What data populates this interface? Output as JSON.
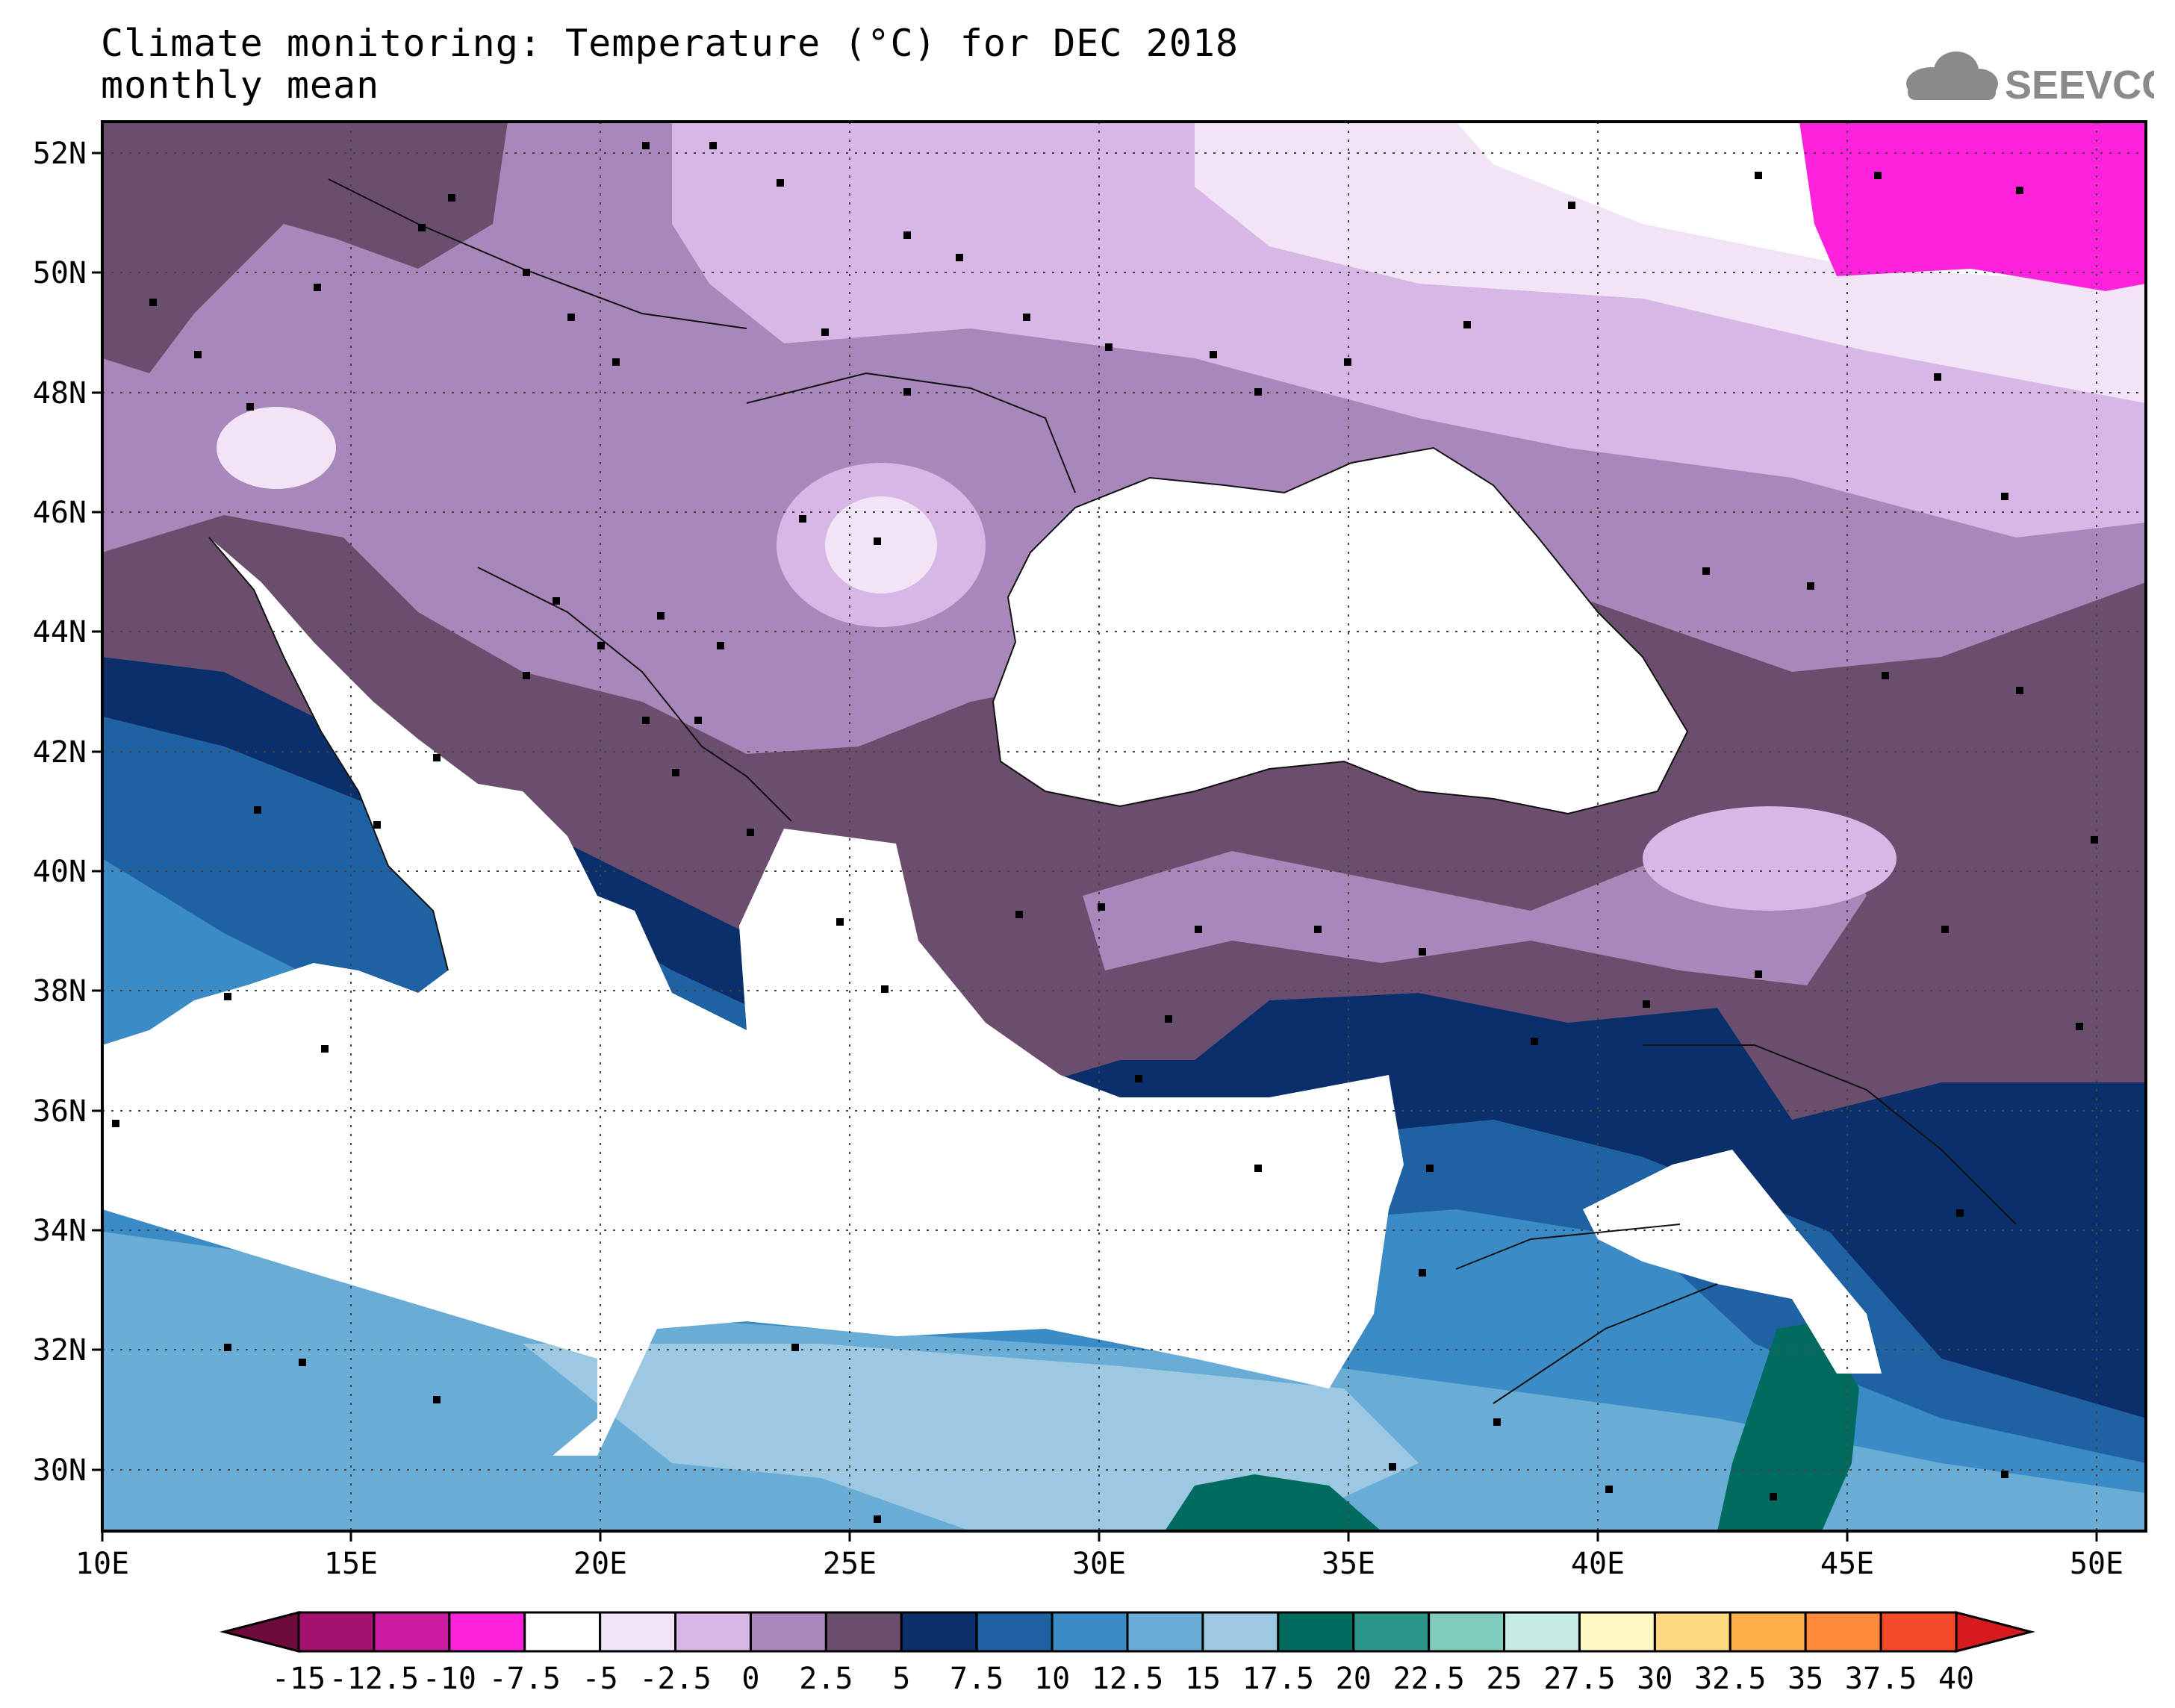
{
  "title": {
    "line1": "Climate monitoring: Temperature (°C) for DEC 2018",
    "line2": "monthly mean"
  },
  "logo": {
    "text": "SEEVCCC",
    "icon": "cloud-icon"
  },
  "map": {
    "lon_range": [
      10,
      51
    ],
    "lat_range": [
      29,
      52.5
    ],
    "grid": true,
    "lat_labels": [
      "52N",
      "50N",
      "48N",
      "46N",
      "44N",
      "42N",
      "40N",
      "38N",
      "36N",
      "34N",
      "32N",
      "30N"
    ],
    "lon_labels": [
      "10E",
      "15E",
      "20E",
      "25E",
      "30E",
      "35E",
      "40E",
      "45E",
      "50E"
    ]
  },
  "colorbar": {
    "labels": [
      "-15",
      "-12.5",
      "-10",
      "-7.5",
      "-5",
      "-2.5",
      "0",
      "2.5",
      "5",
      "7.5",
      "10",
      "12.5",
      "15",
      "17.5",
      "20",
      "22.5",
      "25",
      "27.5",
      "30",
      "32.5",
      "35",
      "37.5",
      "40"
    ],
    "colors": [
      "#6e0a3c",
      "#a3106e",
      "#cc1aa0",
      "#ff22dd",
      "#ffffff",
      "#f0e4f6",
      "#d8b6e6",
      "#a987ba",
      "#6b4e6e",
      "#0a2f6b",
      "#1f62a3",
      "#3b8cc6",
      "#69acd6",
      "#9cc8e2",
      "#006b5e",
      "#2d968a",
      "#7fccbf",
      "#c5ebe4",
      "#fff8c2",
      "#ffd980",
      "#ffb04a",
      "#ff8a3a",
      "#f54a2a",
      "#d71920"
    ]
  }
}
